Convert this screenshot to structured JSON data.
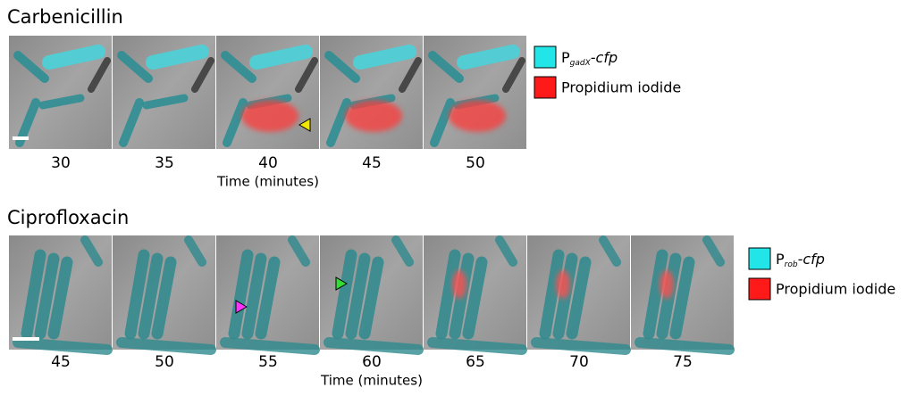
{
  "panels": [
    {
      "title": "Carbenicillin",
      "times": [
        30,
        35,
        40,
        45,
        50
      ],
      "axis_label": "Time (minutes)",
      "legend": [
        {
          "main": "P",
          "sub": "gadX",
          "suffix": "-cfp",
          "color": "#22e5e8"
        },
        {
          "label": "Propidium iodide",
          "color": "#ff1a1a"
        }
      ]
    },
    {
      "title": "Ciprofloxacin",
      "times": [
        45,
        50,
        55,
        60,
        65,
        70,
        75
      ],
      "axis_label": "Time (minutes)",
      "legend": [
        {
          "main": "P",
          "sub": "rob",
          "suffix": "-cfp",
          "color": "#22e5e8"
        },
        {
          "label": "Propidium iodide",
          "color": "#ff1a1a"
        }
      ]
    }
  ]
}
